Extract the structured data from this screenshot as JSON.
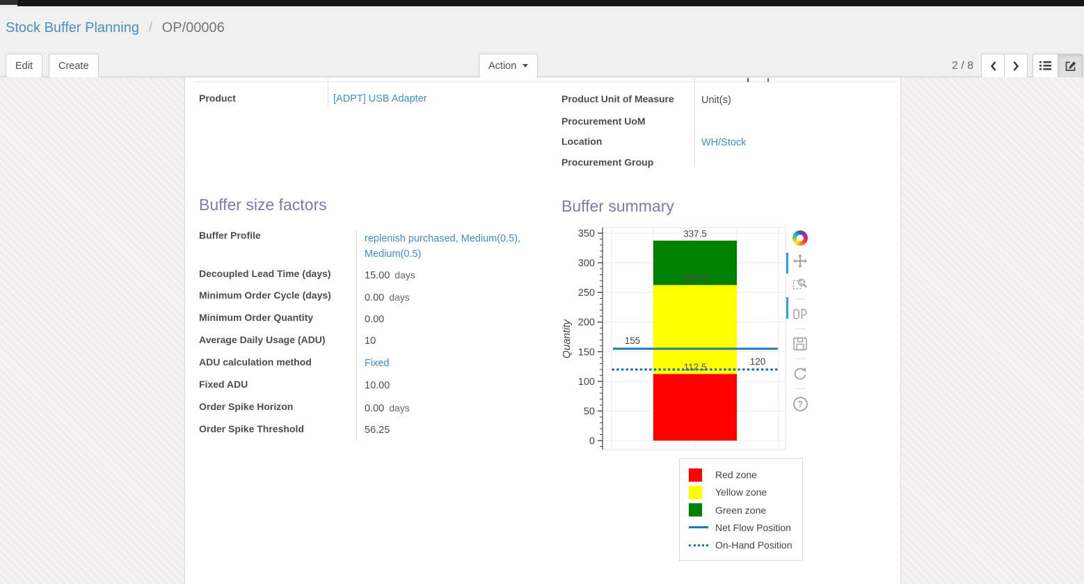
{
  "breadcrumb": {
    "parent": "Stock Buffer Planning",
    "separator": "/",
    "current": "OP/00006"
  },
  "control_panel": {
    "edit_label": "Edit",
    "create_label": "Create",
    "action_label": "Action",
    "pager_value": "2 / 8",
    "view_switcher_icons": [
      "list-view-icon",
      "form-view-icon"
    ],
    "active_view": "form"
  },
  "form": {
    "product_group_left": {
      "fields": [
        {
          "label": "Product",
          "value": "[ADPT] USB Adapter"
        }
      ]
    },
    "product_group_right": {
      "fields": [
        {
          "label": "Product Unit of Measure",
          "value": "Unit(s)"
        },
        {
          "label": "Procurement UoM",
          "value": ""
        },
        {
          "label": "Location",
          "value": "WH/Stock"
        },
        {
          "label": "Procurement Group",
          "value": ""
        }
      ]
    },
    "buffer_factors": {
      "title": "Buffer size factors",
      "fields": [
        {
          "label": "Buffer Profile",
          "value": "replenish purchased, Medium(0.5), Medium(0.5)"
        },
        {
          "label": "Decoupled Lead Time (days)",
          "value": "15.00",
          "suffix": "days"
        },
        {
          "label": "Minimum Order Cycle (days)",
          "value": "0.00",
          "suffix": "days"
        },
        {
          "label": "Minimum Order Quantity",
          "value": "0.00"
        },
        {
          "label": "Average Daily Usage (ADU)",
          "value": "10"
        },
        {
          "label": "ADU calculation method",
          "value": "Fixed"
        },
        {
          "label": "Fixed ADU",
          "value": "10.00"
        },
        {
          "label": "Order Spike Horizon",
          "value": "0.00",
          "suffix": "days"
        },
        {
          "label": "Order Spike Threshold",
          "value": "56.25"
        }
      ]
    },
    "buffer_summary": {
      "title": "Buffer summary"
    }
  },
  "chart_data": {
    "type": "bar",
    "title": "Buffer summary",
    "xlabel": "",
    "ylabel": "Quantity",
    "ylim": [
      0,
      350
    ],
    "y_major_tick": 50,
    "y_minor_tick": 10,
    "grid": true,
    "zones": [
      {
        "name": "Red zone",
        "from": 0,
        "to": 112.5,
        "color": "#ff0000",
        "top_label": "112.5"
      },
      {
        "name": "Yellow zone",
        "from": 112.5,
        "to": 262.5,
        "color": "#ffff00",
        "top_label": "262.5"
      },
      {
        "name": "Green zone",
        "from": 262.5,
        "to": 337.5,
        "color": "#008000",
        "top_label": "337.5"
      }
    ],
    "lines": [
      {
        "name": "Net Flow Position",
        "value": 155,
        "label": "155",
        "style": "solid",
        "color": "#1f77b4"
      },
      {
        "name": "On-Hand Position",
        "value": 120,
        "label": "120",
        "style": "dotted",
        "color": "#1f77b4"
      }
    ],
    "legend_position": "bottom-right",
    "legend_entries": [
      "Red zone",
      "Yellow zone",
      "Green zone",
      "Net Flow Position",
      "On-Hand Position"
    ]
  },
  "chart_toolbar": {
    "icons": [
      "plotly-logo-icon",
      "pan-icon",
      "zoom-box-icon",
      "compare-hover-icon",
      "save-image-icon",
      "reset-axes-icon",
      "help-icon"
    ]
  },
  "icons": {
    "help_glyph": "?"
  },
  "colors": {
    "link": "#428bca",
    "section_title": "#7c7bad",
    "red_zone": "#ff0000",
    "yellow_zone": "#ffff00",
    "green_zone": "#008000",
    "position_line": "#1f77b4",
    "modebar_accent": "#2a9fd6"
  }
}
